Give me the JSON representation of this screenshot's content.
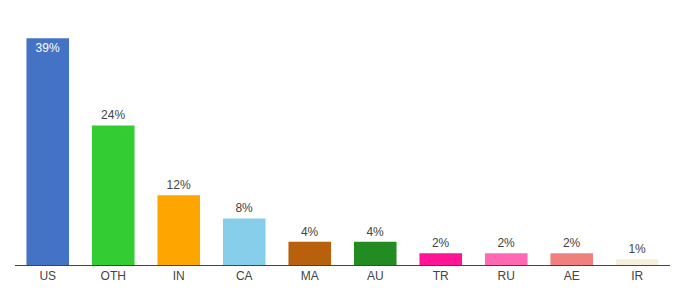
{
  "chart_data": {
    "type": "bar",
    "categories": [
      "US",
      "OTH",
      "IN",
      "CA",
      "MA",
      "AU",
      "TR",
      "RU",
      "AE",
      "IR"
    ],
    "values": [
      39,
      24,
      12,
      8,
      4,
      4,
      2,
      2,
      2,
      1
    ],
    "value_labels": [
      "39%",
      "24%",
      "12%",
      "8%",
      "4%",
      "4%",
      "2%",
      "2%",
      "2%",
      "1%"
    ],
    "colors": [
      "#4472c4",
      "#33cc33",
      "#ffa500",
      "#87ceeb",
      "#b8600c",
      "#228b22",
      "#ff1493",
      "#ff69b4",
      "#f08080",
      "#f5f0dc"
    ],
    "ylim": [
      0,
      43
    ],
    "data_labels": true,
    "tick_labels": "x",
    "grid": false
  }
}
